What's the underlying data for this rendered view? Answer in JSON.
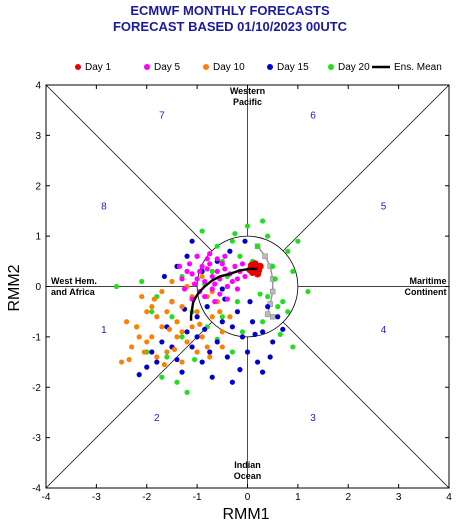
{
  "title_line1": "ECMWF MONTHLY FORECASTS",
  "title_line2": "FORECAST  BASED 01/10/2023 00UTC",
  "colors": {
    "title": "#1a1aa0",
    "day1": "#ee0000",
    "day5": "#ff00ff",
    "day10": "#ff7f00",
    "day15": "#0000cc",
    "day20": "#22dd22",
    "ens_mean": "#000000",
    "phase_numbers": "#1a1acc",
    "obs_track": "#999999"
  },
  "chart_data": {
    "type": "scatter",
    "title": "ECMWF MONTHLY FORECASTS",
    "subtitle": "FORECAST  BASED 01/10/2023 00UTC",
    "xlabel": "RMM1",
    "ylabel": "RMM2",
    "xlim": [
      -4,
      4
    ],
    "ylim": [
      -4,
      4
    ],
    "xticks": [
      "-4",
      "-3",
      "-2",
      "-1",
      "0",
      "1",
      "2",
      "3",
      "4"
    ],
    "yticks": [
      "-4",
      "-3",
      "-2",
      "-1",
      "0",
      "1",
      "2",
      "3",
      "4"
    ],
    "unit_circle_radius": 1,
    "legend_placement": "top",
    "legend": [
      "Day 1",
      "Day 5",
      "Day 10",
      "Day 15",
      "Day 20",
      "Ens. Mean"
    ],
    "regions": {
      "top": [
        "Western",
        "Pacific"
      ],
      "bottom": [
        "Indian",
        "Ocean"
      ],
      "left": [
        "West Hem.",
        "and Africa"
      ],
      "right": [
        "Maritime",
        "Continent"
      ]
    },
    "phases": [
      {
        "label": "1",
        "x": -2.85,
        "y": -0.85
      },
      {
        "label": "2",
        "x": -1.8,
        "y": -2.6
      },
      {
        "label": "3",
        "x": 1.3,
        "y": -2.6
      },
      {
        "label": "4",
        "x": 2.7,
        "y": -0.85
      },
      {
        "label": "5",
        "x": 2.7,
        "y": 1.6
      },
      {
        "label": "6",
        "x": 1.3,
        "y": 3.4
      },
      {
        "label": "7",
        "x": -1.7,
        "y": 3.4
      },
      {
        "label": "8",
        "x": -2.85,
        "y": 1.6
      }
    ],
    "series": [
      {
        "name": "Day 1",
        "points": [
          [
            0.12,
            0.35
          ],
          [
            0.18,
            0.4
          ],
          [
            0.1,
            0.28
          ],
          [
            0.22,
            0.32
          ],
          [
            0.15,
            0.45
          ],
          [
            0.05,
            0.33
          ],
          [
            0.2,
            0.25
          ],
          [
            0.14,
            0.38
          ],
          [
            0.25,
            0.4
          ],
          [
            0.08,
            0.42
          ]
        ]
      },
      {
        "name": "Day 5",
        "points": [
          [
            -0.95,
            0.3
          ],
          [
            -0.8,
            0.35
          ],
          [
            -0.7,
            0.2
          ],
          [
            -1.0,
            0.15
          ],
          [
            -0.6,
            0.3
          ],
          [
            -0.85,
            0.1
          ],
          [
            -1.1,
            0.25
          ],
          [
            -0.75,
            0.45
          ],
          [
            -0.55,
            0.15
          ],
          [
            -0.9,
            0.4
          ],
          [
            -1.2,
            0.3
          ],
          [
            -0.65,
            0.05
          ],
          [
            -0.45,
            0.35
          ],
          [
            -1.05,
            0.05
          ],
          [
            -0.8,
            0.55
          ],
          [
            -0.5,
            0.45
          ],
          [
            -1.15,
            0.45
          ],
          [
            -0.35,
            0.25
          ],
          [
            -0.7,
            -0.05
          ],
          [
            -0.95,
            -0.1
          ],
          [
            -0.4,
            0.0
          ],
          [
            -1.3,
            0.15
          ],
          [
            -0.25,
            0.4
          ],
          [
            -0.6,
            0.55
          ],
          [
            -0.85,
            -0.2
          ],
          [
            -0.3,
            0.1
          ],
          [
            -1.25,
            -0.05
          ],
          [
            -0.55,
            -0.15
          ],
          [
            -0.15,
            0.3
          ],
          [
            -1.0,
            0.6
          ],
          [
            -0.45,
            0.6
          ],
          [
            -0.2,
            0.15
          ],
          [
            -0.75,
            0.65
          ],
          [
            -1.35,
            0.4
          ],
          [
            -0.1,
            0.45
          ],
          [
            -0.65,
            -0.3
          ],
          [
            -0.2,
            -0.05
          ],
          [
            -1.1,
            -0.25
          ],
          [
            -0.4,
            -0.25
          ],
          [
            -0.05,
            0.2
          ]
        ]
      },
      {
        "name": "Day 10",
        "points": [
          [
            -2.2,
            -0.8
          ],
          [
            -2.5,
            -1.5
          ],
          [
            -2.0,
            -1.1
          ],
          [
            -1.8,
            -0.6
          ],
          [
            -1.5,
            -0.3
          ],
          [
            -1.3,
            -0.9
          ],
          [
            -1.0,
            -0.5
          ],
          [
            -0.8,
            -0.2
          ],
          [
            -2.3,
            -1.2
          ],
          [
            -1.9,
            -0.4
          ],
          [
            -1.6,
            -1.3
          ],
          [
            -1.2,
            0.0
          ],
          [
            -0.9,
            -1.0
          ],
          [
            -1.7,
            -0.1
          ],
          [
            -1.4,
            -0.7
          ],
          [
            -2.1,
            -0.2
          ],
          [
            -1.1,
            -0.8
          ],
          [
            -0.7,
            -0.6
          ],
          [
            -1.5,
            0.1
          ],
          [
            -1.9,
            -1.0
          ],
          [
            -1.0,
            -1.3
          ],
          [
            -0.6,
            -0.3
          ],
          [
            -2.4,
            -0.7
          ],
          [
            -1.3,
            -0.4
          ],
          [
            -1.8,
            -1.4
          ],
          [
            -0.5,
            -0.9
          ],
          [
            -0.8,
            -1.2
          ],
          [
            -1.6,
            -0.5
          ],
          [
            -1.2,
            -1.1
          ],
          [
            -2.0,
            -0.5
          ],
          [
            -0.4,
            0.0
          ],
          [
            -1.4,
            -1.0
          ],
          [
            -0.9,
            0.2
          ],
          [
            -1.7,
            -0.8
          ],
          [
            -2.15,
            -1.0
          ],
          [
            -1.1,
            -0.2
          ],
          [
            -0.7,
            -0.1
          ],
          [
            -1.3,
            -1.5
          ],
          [
            -0.55,
            -0.5
          ],
          [
            -1.85,
            -0.25
          ],
          [
            -1.45,
            -1.25
          ],
          [
            -0.95,
            -0.75
          ],
          [
            -2.35,
            -1.45
          ],
          [
            -1.55,
            -0.85
          ],
          [
            -0.35,
            -0.6
          ],
          [
            -1.65,
            -1.55
          ],
          [
            -0.75,
            -1.4
          ],
          [
            -1.05,
            0.05
          ],
          [
            -2.05,
            -1.3
          ],
          [
            -0.5,
            -1.2
          ]
        ]
      },
      {
        "name": "Day 15",
        "points": [
          [
            -1.8,
            -1.5
          ],
          [
            -1.5,
            -1.2
          ],
          [
            -1.2,
            -0.9
          ],
          [
            -0.9,
            -1.5
          ],
          [
            -0.6,
            -1.1
          ],
          [
            -0.3,
            -0.8
          ],
          [
            0.0,
            -1.3
          ],
          [
            0.3,
            -0.9
          ],
          [
            -1.0,
            -0.6
          ],
          [
            -0.7,
            -1.8
          ],
          [
            -0.4,
            -1.4
          ],
          [
            -0.1,
            -1.0
          ],
          [
            0.2,
            -1.5
          ],
          [
            -1.3,
            -1.7
          ],
          [
            -1.6,
            -0.8
          ],
          [
            -1.1,
            -1.2
          ],
          [
            -0.8,
            -0.4
          ],
          [
            -0.5,
            -0.7
          ],
          [
            -0.2,
            -0.5
          ],
          [
            0.1,
            -0.7
          ],
          [
            0.4,
            -0.4
          ],
          [
            0.5,
            -1.1
          ],
          [
            -0.9,
            0.3
          ],
          [
            -1.4,
            0.4
          ],
          [
            -1.7,
            -1.1
          ],
          [
            -2.0,
            -1.6
          ],
          [
            -1.9,
            -1.3
          ],
          [
            -0.6,
            0.5
          ],
          [
            -1.2,
            0.6
          ],
          [
            0.6,
            -0.6
          ],
          [
            0.3,
            -1.7
          ],
          [
            -0.3,
            -1.9
          ],
          [
            -1.5,
            -0.3
          ],
          [
            -1.0,
            -1.0
          ],
          [
            -0.75,
            -1.3
          ],
          [
            -0.45,
            -0.25
          ],
          [
            0.05,
            -0.3
          ],
          [
            -1.25,
            -0.45
          ],
          [
            -0.15,
            -1.65
          ],
          [
            0.45,
            -1.4
          ],
          [
            -1.1,
            0.9
          ],
          [
            -0.5,
            -0.05
          ],
          [
            -1.65,
            0.2
          ],
          [
            0.7,
            -0.85
          ],
          [
            -0.85,
            -0.85
          ],
          [
            -0.35,
            0.7
          ],
          [
            -1.4,
            -1.45
          ],
          [
            0.15,
            -0.95
          ],
          [
            -2.15,
            -1.75
          ],
          [
            -0.05,
            0.9
          ]
        ]
      },
      {
        "name": "Day 20",
        "points": [
          [
            -0.5,
            0.5
          ],
          [
            0.2,
            0.8
          ],
          [
            0.5,
            0.4
          ],
          [
            0.8,
            0.7
          ],
          [
            1.0,
            0.9
          ],
          [
            -0.3,
            0.9
          ],
          [
            0.3,
            1.3
          ],
          [
            0.0,
            1.2
          ],
          [
            -0.9,
            1.1
          ],
          [
            -1.0,
            0.6
          ],
          [
            -0.6,
            0.8
          ],
          [
            0.6,
            -0.4
          ],
          [
            0.3,
            -0.7
          ],
          [
            -0.2,
            -0.3
          ],
          [
            -0.8,
            -0.8
          ],
          [
            -1.3,
            -1.0
          ],
          [
            -1.5,
            -0.6
          ],
          [
            -2.2,
            -0.8
          ],
          [
            -2.0,
            -1.3
          ],
          [
            -1.7,
            -1.8
          ],
          [
            -1.4,
            -1.9
          ],
          [
            -1.2,
            -2.1
          ],
          [
            -1.8,
            -0.2
          ],
          [
            -2.1,
            0.1
          ],
          [
            -2.6,
            0.0
          ],
          [
            0.9,
            0.3
          ],
          [
            0.7,
            -0.3
          ],
          [
            0.4,
            1.0
          ],
          [
            -0.4,
            0.2
          ],
          [
            -0.1,
            -0.9
          ],
          [
            0.8,
            -0.5
          ],
          [
            0.9,
            -1.2
          ],
          [
            0.4,
            -0.2
          ],
          [
            -0.7,
            0.3
          ],
          [
            -1.1,
            -0.5
          ],
          [
            -0.3,
            -1.3
          ],
          [
            0.1,
            0.5
          ],
          [
            -0.5,
            -0.6
          ],
          [
            -1.6,
            -1.4
          ],
          [
            1.2,
            -0.1
          ],
          [
            -0.15,
            0.6
          ],
          [
            -0.85,
            0.05
          ],
          [
            0.55,
            0.15
          ],
          [
            -1.3,
            0.2
          ],
          [
            -0.6,
            -1.05
          ],
          [
            0.25,
            -0.15
          ],
          [
            -1.05,
            -1.45
          ],
          [
            0.65,
            -0.95
          ],
          [
            -1.9,
            -0.5
          ],
          [
            -0.25,
            1.05
          ]
        ]
      },
      {
        "name": "Ens. Mean",
        "points": [
          [
            0.2,
            0.35
          ],
          [
            0.05,
            0.35
          ],
          [
            -0.15,
            0.32
          ],
          [
            -0.35,
            0.25
          ],
          [
            -0.55,
            0.2
          ],
          [
            -0.7,
            0.12
          ],
          [
            -0.85,
            0.0
          ],
          [
            -0.95,
            -0.1
          ],
          [
            -1.02,
            -0.2
          ],
          [
            -1.08,
            -0.32
          ],
          [
            -1.1,
            -0.45
          ],
          [
            -1.12,
            -0.58
          ],
          [
            -1.12,
            -0.68
          ]
        ]
      }
    ],
    "observed_track": [
      [
        0.2,
        0.8
      ],
      [
        0.35,
        0.6
      ],
      [
        0.45,
        0.4
      ],
      [
        0.5,
        0.15
      ],
      [
        0.5,
        -0.1
      ],
      [
        0.45,
        -0.35
      ],
      [
        0.4,
        -0.55
      ],
      [
        0.5,
        -0.6
      ]
    ]
  }
}
